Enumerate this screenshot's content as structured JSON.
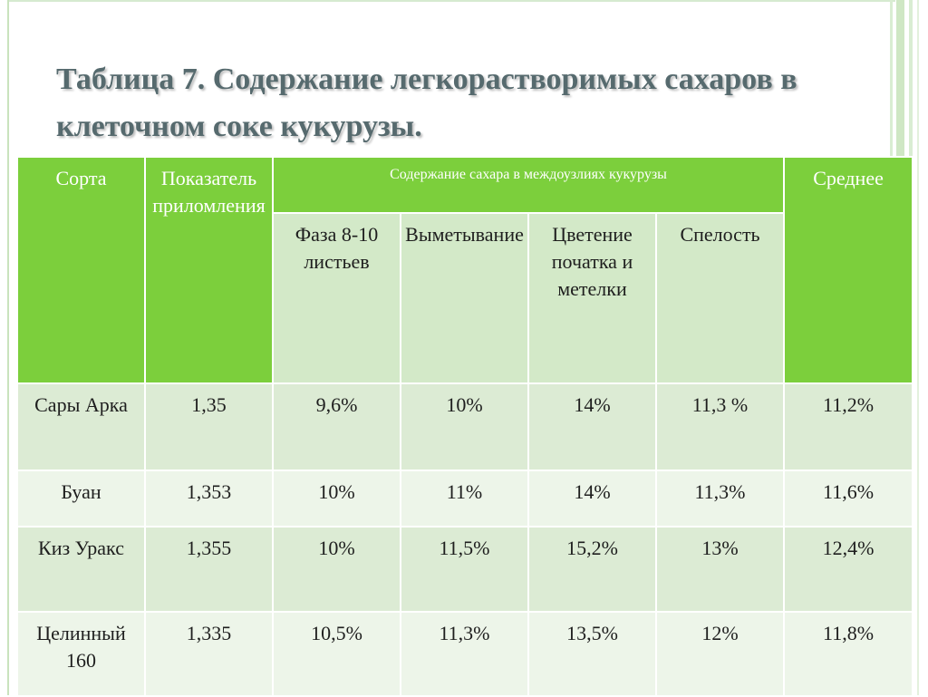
{
  "title": "Таблица 7.  Содержание легкорастворимых сахаров в клеточном соке кукурузы.",
  "table": {
    "headers": {
      "variety": "Сорта",
      "refraction": "Показатель приломления",
      "sugar_group": "Содержание сахара в междоузлиях кукурузы",
      "average": "Среднее",
      "phases": [
        "Фаза 8-10 листьев",
        "Выметывание",
        "Цветение початка и метелки",
        "Спелость"
      ]
    },
    "rows": [
      {
        "variety": "Сары Арка",
        "refraction": "1,35",
        "phase1": "9,6%",
        "phase2": "10%",
        "phase3": "14%",
        "phase4": "11,3 %",
        "average": "11,2%"
      },
      {
        "variety": "Буан",
        "refraction": "1,353",
        "phase1": "10%",
        "phase2": "11%",
        "phase3": "14%",
        "phase4": "11,3%",
        "average": "11,6%"
      },
      {
        "variety": "Киз Уракс",
        "refraction": "1,355",
        "phase1": "10%",
        "phase2": "11,5%",
        "phase3": "15,2%",
        "phase4": "13%",
        "average": "12,4%"
      },
      {
        "variety": "Целинный 160",
        "refraction": "1,335",
        "phase1": "10,5%",
        "phase2": "11,3%",
        "phase3": "13,5%",
        "phase4": "12%",
        "average": "11,8%"
      }
    ]
  },
  "colors": {
    "header_green": "#7ccf3c",
    "row_dark": "#dcebd4",
    "row_light": "#edf5e9",
    "title_gray": "#566a6e"
  }
}
